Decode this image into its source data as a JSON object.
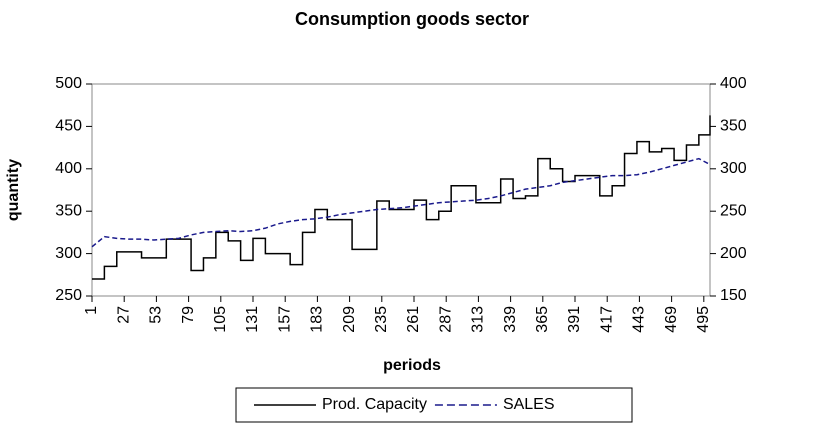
{
  "chart_data": {
    "type": "line",
    "title": "Consumption goods sector",
    "xlabel": "periods",
    "ylabel": "quantity",
    "x": [
      1,
      11,
      21,
      31,
      41,
      51,
      61,
      71,
      81,
      91,
      101,
      111,
      121,
      131,
      141,
      151,
      161,
      171,
      181,
      191,
      201,
      211,
      221,
      231,
      241,
      251,
      261,
      271,
      281,
      291,
      301,
      311,
      321,
      331,
      341,
      351,
      361,
      371,
      381,
      391,
      401,
      411,
      421,
      431,
      441,
      451,
      461,
      471,
      481,
      491,
      500
    ],
    "xlim": [
      1,
      500
    ],
    "xticks": [
      1,
      27,
      53,
      79,
      105,
      131,
      157,
      183,
      209,
      235,
      261,
      287,
      313,
      339,
      365,
      391,
      417,
      443,
      469,
      495
    ],
    "ylim": [
      250,
      500
    ],
    "yticks": [
      250,
      300,
      350,
      400,
      450,
      500
    ],
    "y2lim": [
      150,
      400
    ],
    "y2ticks": [
      150,
      200,
      250,
      300,
      350,
      400
    ],
    "legend": "bottom",
    "series": [
      {
        "name": "Prod. Capacity",
        "color": "#000000",
        "linestyle": "solid",
        "drawstyle": "steps-post",
        "values": [
          270,
          285,
          302,
          302,
          295,
          295,
          317,
          317,
          280,
          295,
          325,
          315,
          292,
          318,
          300,
          300,
          287,
          325,
          352,
          340,
          340,
          305,
          305,
          362,
          352,
          352,
          363,
          340,
          350,
          380,
          380,
          360,
          360,
          388,
          365,
          368,
          412,
          400,
          385,
          392,
          392,
          368,
          380,
          418,
          432,
          420,
          424,
          410,
          428,
          440,
          463
        ]
      },
      {
        "name": "SALES",
        "color": "#1a1a8c",
        "linestyle": "dashed",
        "axis": "y2",
        "values": [
          208,
          220,
          218,
          217,
          217,
          216,
          217,
          218,
          222,
          225,
          226,
          227,
          226,
          227,
          230,
          235,
          238,
          240,
          241,
          243,
          246,
          248,
          250,
          252,
          253,
          254,
          256,
          258,
          260,
          261,
          262,
          263,
          265,
          268,
          272,
          276,
          278,
          280,
          284,
          286,
          288,
          290,
          292,
          292,
          293,
          296,
          300,
          304,
          308,
          312,
          305
        ]
      }
    ]
  }
}
